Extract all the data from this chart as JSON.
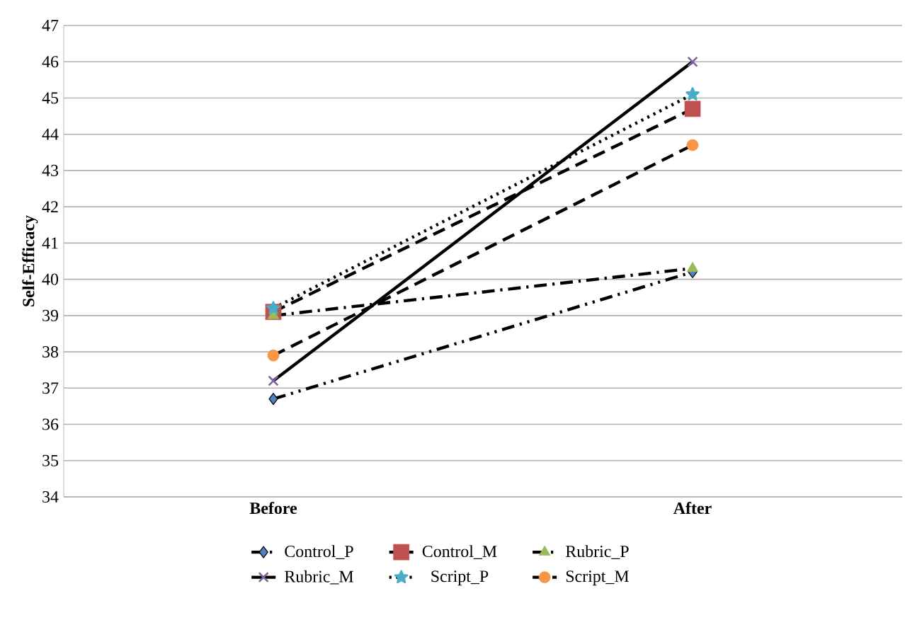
{
  "chart_data": {
    "type": "line",
    "ylabel": "Self-Efficacy",
    "categories": [
      "Before",
      "After"
    ],
    "series": [
      {
        "name": "Control_P",
        "color": "#4f81bd",
        "marker": "diamond",
        "line_style": "dashdotdot",
        "values": [
          36.7,
          40.2
        ]
      },
      {
        "name": "Control_M",
        "color": "#c0504d",
        "marker": "square",
        "line_style": "dashed",
        "values": [
          39.1,
          44.7
        ]
      },
      {
        "name": "Rubric_P",
        "color": "#9bbb59",
        "marker": "triangle",
        "line_style": "dashdot",
        "values": [
          39.0,
          40.3
        ]
      },
      {
        "name": "Rubric_M",
        "color": "#8064a2",
        "marker": "cross",
        "line_style": "solid",
        "values": [
          37.2,
          46.0
        ]
      },
      {
        "name": "Script_P",
        "color": "#4bacc6",
        "marker": "star",
        "line_style": "dotted",
        "values": [
          39.2,
          45.1
        ]
      },
      {
        "name": "Script_M",
        "color": "#f79646",
        "marker": "circle",
        "line_style": "dashed",
        "values": [
          37.9,
          43.7
        ]
      }
    ],
    "ylim": [
      34,
      47
    ],
    "yticks": [
      34,
      35,
      36,
      37,
      38,
      39,
      40,
      41,
      42,
      43,
      44,
      45,
      46,
      47
    ],
    "grid": "y",
    "legend": "bottom"
  }
}
